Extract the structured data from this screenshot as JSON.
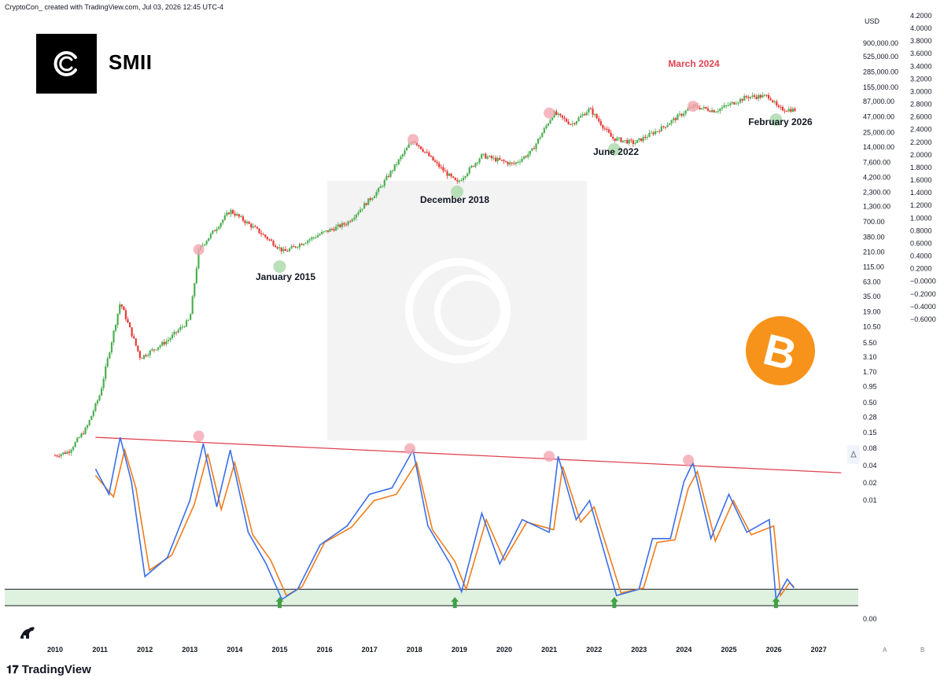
{
  "header": {
    "credit": "CryptoCon_ created with TradingView.com, Jul 03, 2026 12:45 UTC-4"
  },
  "brand": {
    "name": "SMII",
    "logo_icon": "cryptocon-logo-icon"
  },
  "footer": {
    "brand": "TradingView"
  },
  "colors": {
    "up": "#26a69a",
    "down": "#ef5350",
    "price_up": "#4caf50",
    "price_down": "#e53935",
    "smii": "#3a6ee8",
    "signal": "#f07c1b",
    "trend": "#e04452",
    "zone": "#dff1df",
    "peak": "#f4a6b0",
    "trough": "#a8d8a8",
    "btc": "#f7931a"
  },
  "chart_data": [
    {
      "type": "line",
      "title": "",
      "price_axis": {
        "unit": "USD",
        "scale": "log",
        "ticks": [
          "900,000.00",
          "525,000.00",
          "285,000.00",
          "155,000.00",
          "87,000.00",
          "47,000.00",
          "25,000.00",
          "14,000.00",
          "7,600.00",
          "4,200.00",
          "2,300.00",
          "1,300.00",
          "700.00",
          "380.00",
          "210.00",
          "115.00",
          "63.00",
          "35.00",
          "19.00",
          "10.50",
          "5.50",
          "3.10",
          "1.70",
          "0.95",
          "0.50",
          "0.28",
          "0.15",
          "0.08",
          "0.04",
          "0.02",
          "0.01"
        ]
      },
      "indicator_axis": {
        "ticks": [
          "4.2000",
          "4.0000",
          "3.8000",
          "3.6000",
          "3.4000",
          "3.2000",
          "3.0000",
          "2.8000",
          "2.6000",
          "2.4000",
          "2.2000",
          "2.0000",
          "1.8000",
          "1.6000",
          "1.4000",
          "1.2000",
          "1.0000",
          "0.8000",
          "0.6000",
          "0.4000",
          "0.2000",
          "−0.0000",
          "−0.2000",
          "−0.4000",
          "−0.6000"
        ],
        "left_labels": [
          "0.00"
        ]
      },
      "x_axis": {
        "ticks": [
          "2010",
          "2011",
          "2012",
          "2013",
          "2014",
          "2015",
          "2016",
          "2017",
          "2018",
          "2019",
          "2020",
          "2021",
          "2022",
          "2023",
          "2024",
          "2025",
          "2026",
          "2027"
        ]
      },
      "price_series": {
        "name": "",
        "x": [
          2010.0,
          2010.3,
          2010.7,
          2011.0,
          2011.45,
          2011.9,
          2012.5,
          2013.0,
          2013.2,
          2013.9,
          2014.5,
          2015.1,
          2015.9,
          2016.5,
          2017.2,
          2017.97,
          2018.5,
          2018.95,
          2019.5,
          2020.2,
          2020.6,
          2021.1,
          2021.5,
          2021.9,
          2022.4,
          2022.9,
          2023.5,
          2024.2,
          2024.7,
          2025.4,
          2025.9,
          2026.1,
          2026.5
        ],
        "y": [
          0.06,
          0.07,
          0.18,
          0.7,
          28,
          3,
          6,
          14,
          230,
          1100,
          500,
          210,
          430,
          670,
          2500,
          19000,
          7000,
          3300,
          10000,
          7000,
          11500,
          55000,
          35000,
          65000,
          20000,
          16500,
          30000,
          72000,
          60000,
          105000,
          108000,
          65000,
          62000
        ]
      },
      "smii_series": {
        "name": "",
        "x": [
          2010.9,
          2011.2,
          2011.45,
          2011.7,
          2012.0,
          2012.5,
          2013.0,
          2013.3,
          2013.6,
          2013.9,
          2014.3,
          2014.7,
          2015.05,
          2015.4,
          2015.9,
          2016.5,
          2017.0,
          2017.5,
          2017.97,
          2018.3,
          2018.8,
          2019.05,
          2019.5,
          2019.9,
          2020.4,
          2021.0,
          2021.2,
          2021.6,
          2021.9,
          2022.5,
          2023.0,
          2023.3,
          2023.7,
          2024.0,
          2024.2,
          2024.6,
          2025.0,
          2025.4,
          2025.9,
          2026.05,
          2026.3,
          2026.45
        ],
        "y": [
          0.7,
          0.5,
          0.95,
          0.6,
          -0.15,
          0.0,
          0.45,
          0.9,
          0.4,
          0.85,
          0.2,
          -0.05,
          -0.33,
          -0.25,
          0.1,
          0.25,
          0.5,
          0.55,
          0.85,
          0.25,
          -0.05,
          -0.27,
          0.35,
          -0.05,
          0.3,
          0.2,
          0.8,
          0.3,
          0.45,
          -0.3,
          -0.25,
          0.15,
          0.15,
          0.6,
          0.75,
          0.15,
          0.5,
          0.2,
          0.3,
          -0.33,
          -0.17,
          -0.24
        ]
      },
      "signal_series": {
        "name": "",
        "x": [
          2010.9,
          2011.3,
          2011.55,
          2011.8,
          2012.1,
          2012.6,
          2013.1,
          2013.4,
          2013.7,
          2014.0,
          2014.4,
          2014.8,
          2015.15,
          2015.5,
          2016.0,
          2016.6,
          2017.1,
          2017.6,
          2018.05,
          2018.4,
          2018.9,
          2019.15,
          2019.6,
          2020.0,
          2020.5,
          2021.1,
          2021.3,
          2021.7,
          2022.0,
          2022.6,
          2023.1,
          2023.4,
          2023.8,
          2024.1,
          2024.3,
          2024.7,
          2025.1,
          2025.5,
          2026.0,
          2026.15,
          2026.35,
          2026.45
        ],
        "y": [
          0.65,
          0.48,
          0.85,
          0.55,
          -0.1,
          0.02,
          0.42,
          0.82,
          0.38,
          0.75,
          0.18,
          -0.02,
          -0.3,
          -0.23,
          0.12,
          0.24,
          0.45,
          0.5,
          0.75,
          0.22,
          -0.03,
          -0.25,
          0.3,
          -0.02,
          0.28,
          0.22,
          0.72,
          0.28,
          0.4,
          -0.28,
          -0.24,
          0.12,
          0.14,
          0.55,
          0.68,
          0.13,
          0.45,
          0.18,
          0.25,
          -0.3,
          -0.2,
          -0.23
        ]
      },
      "trendline": {
        "from": [
          2010.9,
          0.95
        ],
        "to": [
          2027.5,
          0.67
        ]
      },
      "zone": {
        "upper": -0.25,
        "lower": -0.38
      },
      "annotations": [
        {
          "label": "January 2015",
          "kind": "trough"
        },
        {
          "label": "December 2018",
          "kind": "trough"
        },
        {
          "label": "June 2022",
          "kind": "trough"
        },
        {
          "label": "March 2024",
          "kind": "peak"
        },
        {
          "label": "February 2026",
          "kind": "trough"
        }
      ]
    }
  ]
}
